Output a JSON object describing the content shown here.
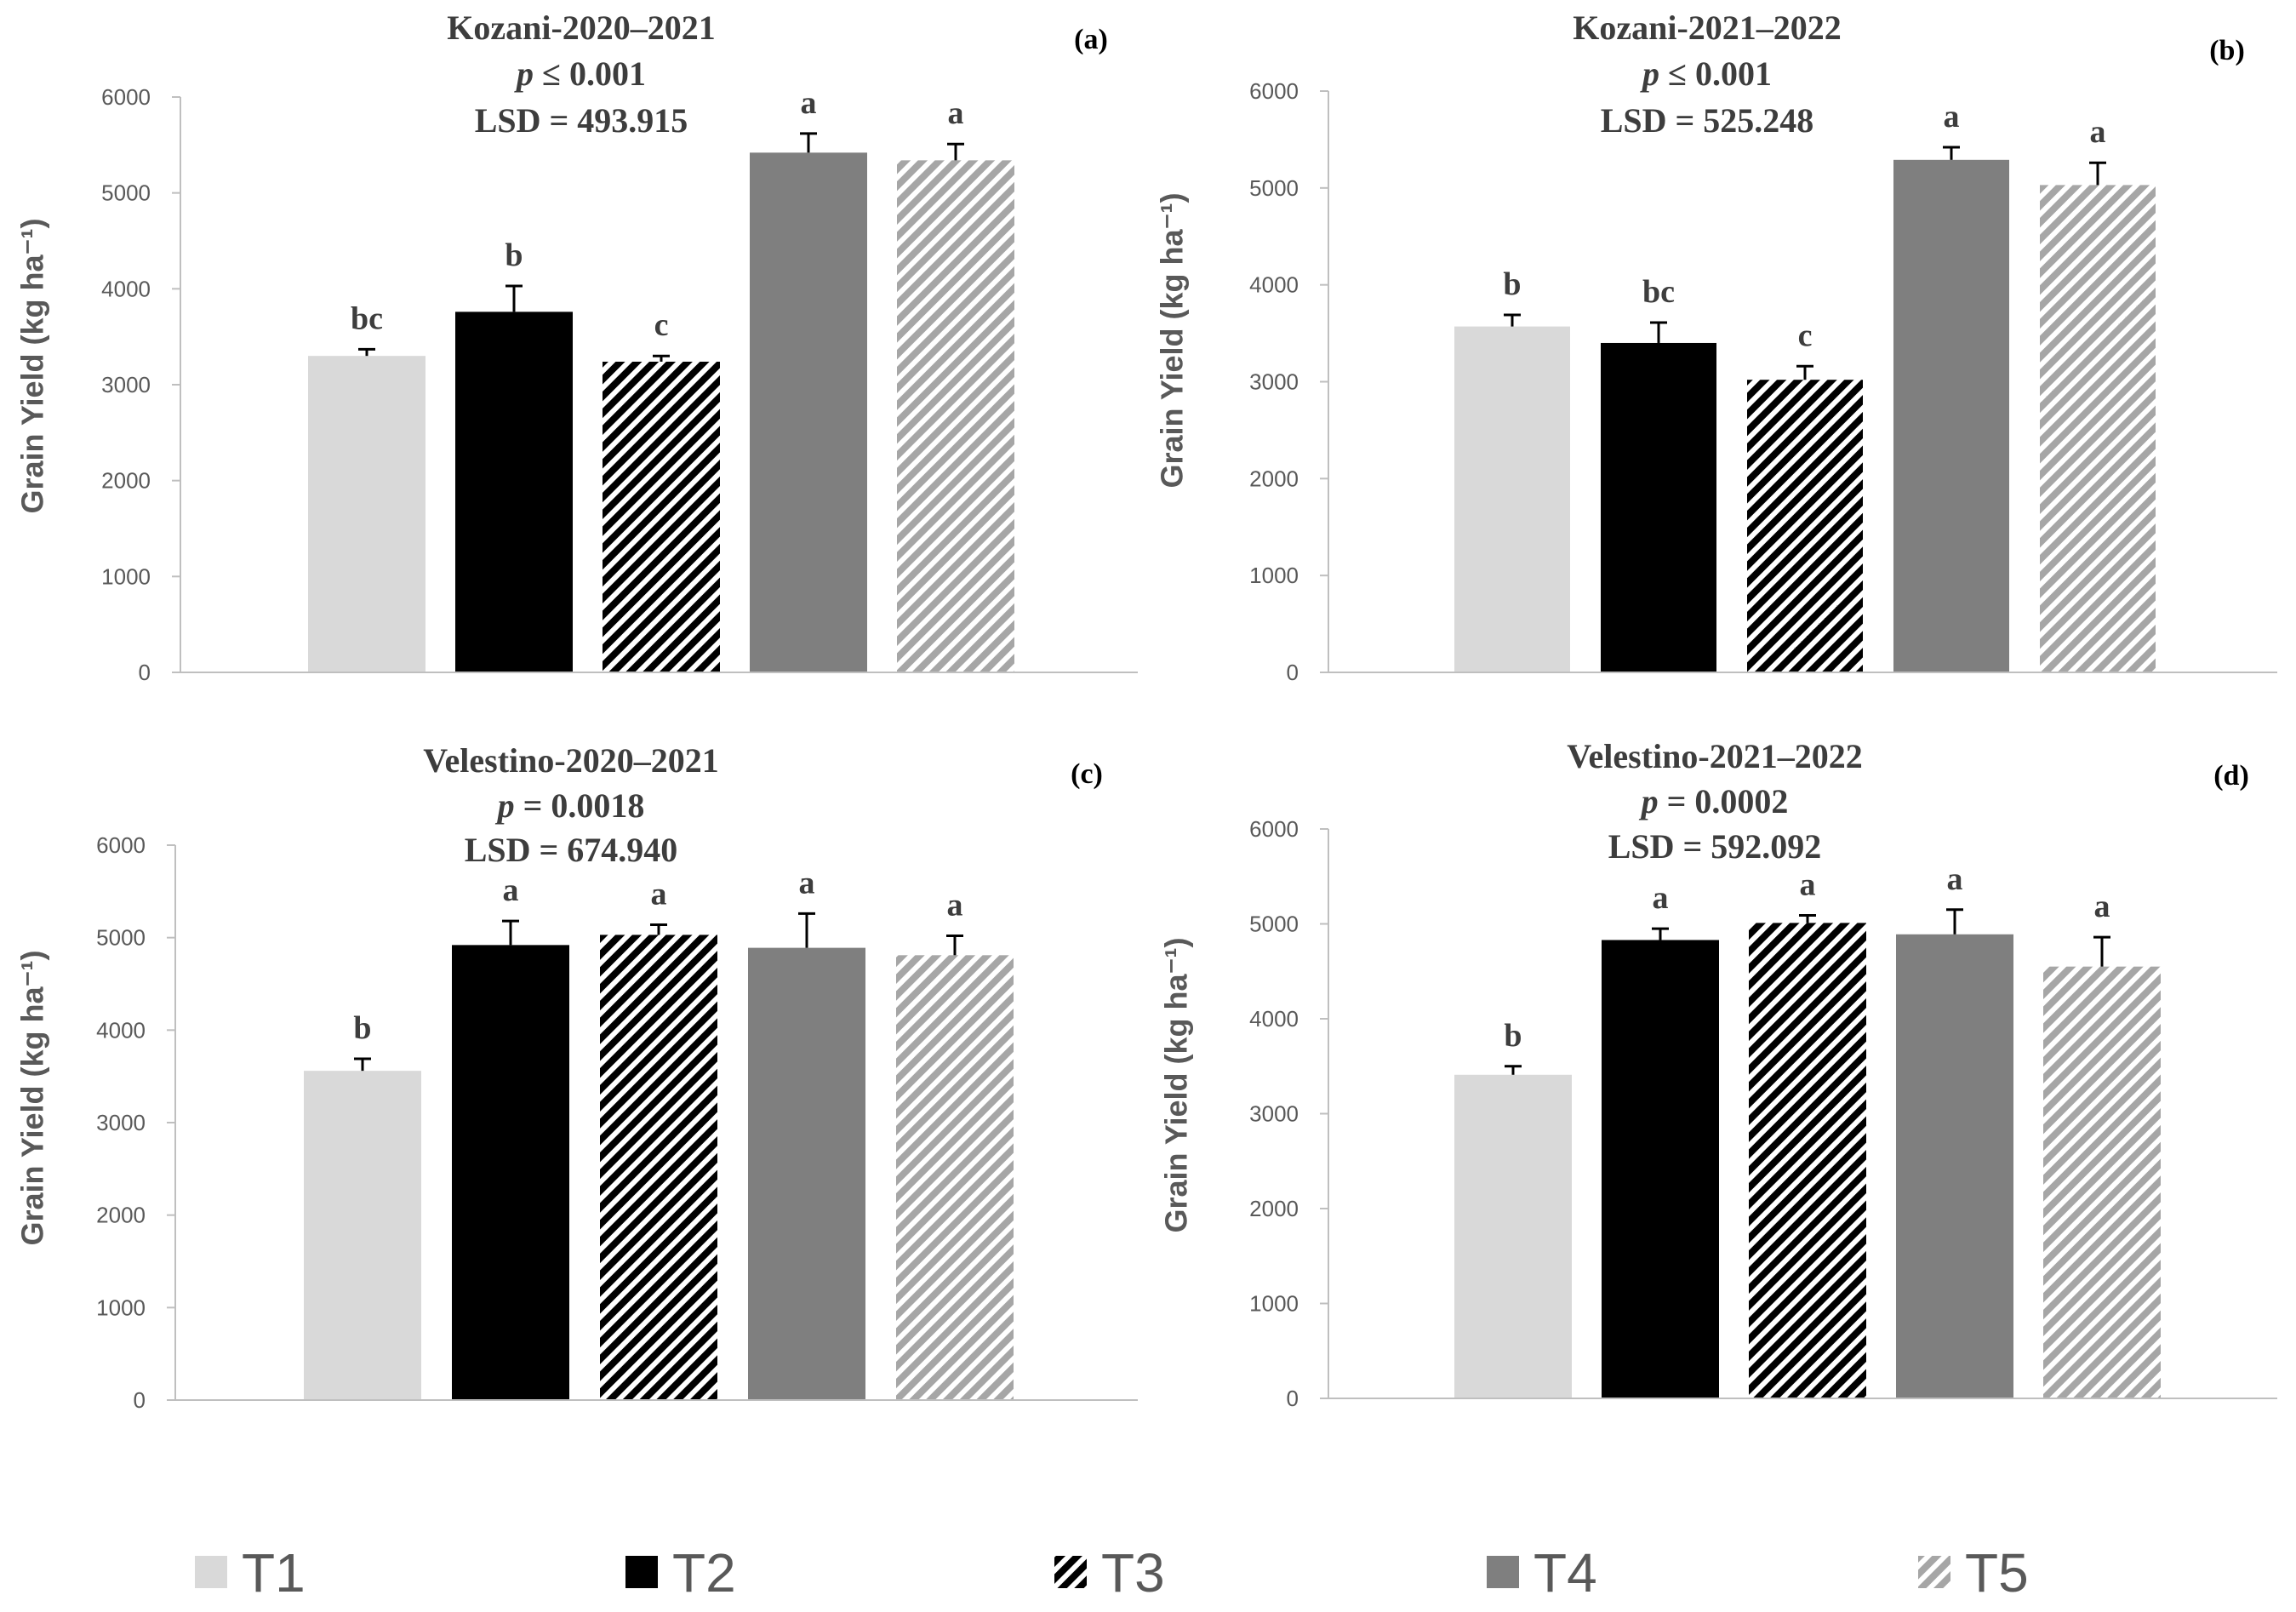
{
  "chart_data": [
    {
      "panel": "(a)",
      "type": "bar",
      "title": "Kozani-2020–2021",
      "p_symbol": "p",
      "p_value": "≤ 0.001",
      "lsd": "LSD = 493.915",
      "ylabel": "Grain Yield (kg ha⁻¹)",
      "ylim": [
        0,
        6000
      ],
      "yticks": [
        0,
        1000,
        2000,
        3000,
        4000,
        5000,
        6000
      ],
      "categories": [
        "T1",
        "T2",
        "T3",
        "T4",
        "T5"
      ],
      "values": [
        3300,
        3760,
        3240,
        5420,
        5340
      ],
      "errors": [
        70,
        270,
        60,
        200,
        170
      ],
      "letters": [
        "bc",
        "b",
        "c",
        "a",
        "a"
      ]
    },
    {
      "panel": "(b)",
      "type": "bar",
      "title": "Kozani-2021–2022",
      "p_symbol": "p",
      "p_value": "≤ 0.001",
      "lsd": "LSD = 525.248",
      "ylabel": "Grain Yield (kg ha⁻¹)",
      "ylim": [
        0,
        6000
      ],
      "yticks": [
        0,
        1000,
        2000,
        3000,
        4000,
        5000,
        6000
      ],
      "categories": [
        "T1",
        "T2",
        "T3",
        "T4",
        "T5"
      ],
      "values": [
        3570,
        3400,
        3020,
        5290,
        5030
      ],
      "errors": [
        120,
        210,
        140,
        130,
        230
      ],
      "letters": [
        "b",
        "bc",
        "c",
        "a",
        "a"
      ]
    },
    {
      "panel": "(c)",
      "type": "bar",
      "title": "Velestino-2020–2021",
      "p_symbol": "p",
      "p_value": "= 0.0018",
      "lsd": "LSD = 674.940",
      "ylabel": "Grain Yield (kg ha⁻¹)",
      "ylim": [
        0,
        6000
      ],
      "yticks": [
        0,
        1000,
        2000,
        3000,
        4000,
        5000,
        6000
      ],
      "categories": [
        "T1",
        "T2",
        "T3",
        "T4",
        "T5"
      ],
      "values": [
        3560,
        4920,
        5030,
        4890,
        4810
      ],
      "errors": [
        130,
        260,
        110,
        370,
        210
      ],
      "letters": [
        "b",
        "a",
        "a",
        "a",
        "a"
      ]
    },
    {
      "panel": "(d)",
      "type": "bar",
      "title": "Velestino-2021–2022",
      "p_symbol": "p",
      "p_value": "= 0.0002",
      "lsd": "LSD = 592.092",
      "ylabel": "Grain Yield (kg ha⁻¹)",
      "ylim": [
        0,
        6000
      ],
      "yticks": [
        0,
        1000,
        2000,
        3000,
        4000,
        5000,
        6000
      ],
      "categories": [
        "T1",
        "T2",
        "T3",
        "T4",
        "T5"
      ],
      "values": [
        3410,
        4830,
        5010,
        4890,
        4550
      ],
      "errors": [
        90,
        120,
        80,
        260,
        310
      ],
      "letters": [
        "b",
        "a",
        "a",
        "a",
        "a"
      ]
    }
  ],
  "legend": {
    "position": "bottom",
    "items": [
      {
        "label": "T1",
        "fill": "#d9d9d9",
        "stripe": null
      },
      {
        "label": "T2",
        "fill": "#000000",
        "stripe": null
      },
      {
        "label": "T3",
        "fill": "#ffffff",
        "stripe": "#000000"
      },
      {
        "label": "T4",
        "fill": "#7f7f7f",
        "stripe": null
      },
      {
        "label": "T5",
        "fill": "#ffffff",
        "stripe": "#a6a6a6"
      }
    ]
  }
}
